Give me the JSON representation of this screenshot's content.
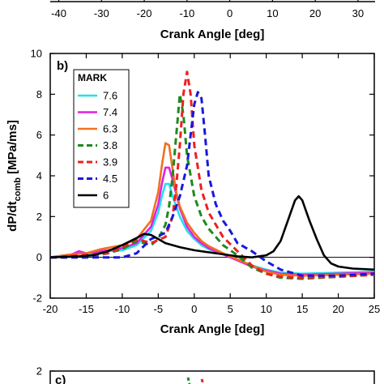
{
  "chart_data": [
    {
      "panel": "a",
      "type": "line",
      "x_ticks": [
        -40,
        -30,
        -20,
        -10,
        0,
        10,
        20,
        30
      ],
      "xlabel": "Crank Angle [deg]",
      "xlim": [
        -42,
        34
      ]
    },
    {
      "panel": "b",
      "panel_label": "b)",
      "type": "line",
      "xlabel": "Crank Angle [deg]",
      "ylabel_main": "dP/dt",
      "ylabel_sub": "comb",
      "ylabel_unit": " [MPa/ms]",
      "xlim": [
        -20,
        25
      ],
      "ylim": [
        -2,
        10
      ],
      "x_ticks": [
        -20,
        -15,
        -10,
        -5,
        0,
        5,
        10,
        15,
        20,
        25
      ],
      "y_ticks": [
        -2,
        0,
        2,
        4,
        6,
        8,
        10
      ],
      "legend": {
        "title": "MARK",
        "placement": "top-left"
      },
      "series": [
        {
          "name": "7.6",
          "color": "#22e0ee",
          "dash": "solid",
          "x": [
            -20,
            -17,
            -16,
            -15,
            -12,
            -10,
            -8,
            -6,
            -5,
            -4.5,
            -4,
            -3.5,
            -3,
            -2,
            -1,
            0,
            1,
            2,
            4,
            6,
            8,
            10,
            12,
            15,
            20,
            25
          ],
          "y": [
            0,
            0.1,
            0.25,
            0.15,
            0.3,
            0.35,
            0.6,
            1.3,
            2.2,
            3.0,
            3.6,
            3.6,
            3.0,
            2.0,
            1.3,
            0.9,
            0.6,
            0.4,
            0.15,
            -0.1,
            -0.4,
            -0.6,
            -0.75,
            -0.8,
            -0.75,
            -0.7
          ]
        },
        {
          "name": "7.4",
          "color": "#e020e0",
          "dash": "solid",
          "x": [
            -20,
            -17,
            -16,
            -15,
            -12,
            -10,
            -8,
            -6,
            -5,
            -4.5,
            -4,
            -3.5,
            -3,
            -2,
            -1,
            0,
            1,
            2,
            4,
            6,
            8,
            10,
            12,
            15,
            20,
            25
          ],
          "y": [
            0,
            0.15,
            0.3,
            0.2,
            0.35,
            0.45,
            0.7,
            1.5,
            2.6,
            3.6,
            4.4,
            4.4,
            3.8,
            2.4,
            1.5,
            1.0,
            0.7,
            0.45,
            0.15,
            -0.15,
            -0.45,
            -0.65,
            -0.8,
            -0.85,
            -0.8,
            -0.75
          ]
        },
        {
          "name": "6.3",
          "color": "#f07020",
          "dash": "solid",
          "x": [
            -20,
            -17,
            -15,
            -13,
            -10,
            -8,
            -6,
            -5,
            -4.5,
            -4,
            -3.5,
            -3,
            -2.5,
            -2,
            -1,
            0,
            1,
            2,
            4,
            6,
            8,
            10,
            12,
            15,
            20,
            25
          ],
          "y": [
            0,
            0.15,
            0.2,
            0.4,
            0.6,
            0.9,
            1.8,
            3.2,
            4.5,
            5.6,
            5.5,
            4.3,
            3.2,
            2.5,
            1.7,
            1.2,
            0.8,
            0.55,
            0.2,
            -0.1,
            -0.4,
            -0.7,
            -0.85,
            -0.9,
            -0.85,
            -0.8
          ]
        },
        {
          "name": "3.8",
          "color": "#1e8a1e",
          "dash": "dashed",
          "x": [
            -20,
            -15,
            -12,
            -10,
            -8,
            -6,
            -5,
            -4,
            -3.5,
            -3,
            -2.5,
            -2,
            -1.5,
            -1,
            0,
            1,
            2,
            4,
            6,
            8,
            10,
            12,
            15,
            20,
            25
          ],
          "y": [
            0,
            0,
            0.2,
            0.4,
            0.8,
            0.6,
            0.9,
            1.6,
            2.5,
            4.0,
            6.0,
            8.0,
            7.0,
            5.0,
            3.0,
            2.0,
            1.4,
            0.6,
            0.1,
            -0.5,
            -0.8,
            -1.0,
            -1.05,
            -0.95,
            -0.85
          ]
        },
        {
          "name": "3.9",
          "color": "#ee2020",
          "dash": "dashed",
          "x": [
            -20,
            -12,
            -10,
            -8,
            -6,
            -4,
            -3,
            -2.5,
            -2,
            -1.5,
            -1,
            -0.5,
            0,
            1,
            2,
            3,
            4,
            6,
            8,
            10,
            12,
            15,
            20,
            25
          ],
          "y": [
            0,
            0.2,
            0.5,
            0.9,
            0.7,
            1.0,
            2.0,
            3.5,
            5.5,
            8.0,
            9.1,
            8.0,
            5.5,
            3.3,
            2.2,
            1.6,
            1.0,
            0.3,
            -0.4,
            -0.8,
            -0.95,
            -1.0,
            -0.95,
            -0.85
          ]
        },
        {
          "name": "4.5",
          "color": "#1818dd",
          "dash": "dashed",
          "x": [
            -20,
            -15,
            -10,
            -8,
            -6,
            -4,
            -3,
            -2,
            -1,
            -0.5,
            0,
            0.5,
            1,
            1.5,
            2,
            3,
            4,
            5,
            6,
            8,
            10,
            12,
            15,
            20,
            25
          ],
          "y": [
            0,
            0,
            0,
            0.2,
            0.9,
            1.2,
            2.0,
            3.0,
            4.5,
            6.0,
            7.5,
            8.1,
            7.8,
            6.0,
            4.0,
            2.6,
            1.8,
            1.3,
            0.7,
            0.3,
            -0.2,
            -0.6,
            -0.9,
            -0.9,
            -0.8
          ]
        },
        {
          "name": "6",
          "color": "#000000",
          "dash": "solid",
          "x": [
            -20,
            -16,
            -14,
            -12,
            -10,
            -8,
            -7,
            -6,
            -5,
            -4,
            -2,
            0,
            2,
            4,
            6,
            8,
            10,
            11,
            12,
            13,
            14,
            14.5,
            15,
            16,
            17,
            18,
            19,
            20,
            22,
            25
          ],
          "y": [
            0,
            0.05,
            0.1,
            0.3,
            0.6,
            0.95,
            1.15,
            1.1,
            0.9,
            0.7,
            0.5,
            0.35,
            0.25,
            0.15,
            0.05,
            0.0,
            0.1,
            0.3,
            0.8,
            1.8,
            2.8,
            3.0,
            2.8,
            1.8,
            0.9,
            0.1,
            -0.3,
            -0.45,
            -0.55,
            -0.6
          ]
        }
      ]
    },
    {
      "panel": "c",
      "panel_label": "c)",
      "type": "line",
      "y_ticks": [
        2
      ],
      "ylim": [
        0,
        2
      ]
    }
  ]
}
